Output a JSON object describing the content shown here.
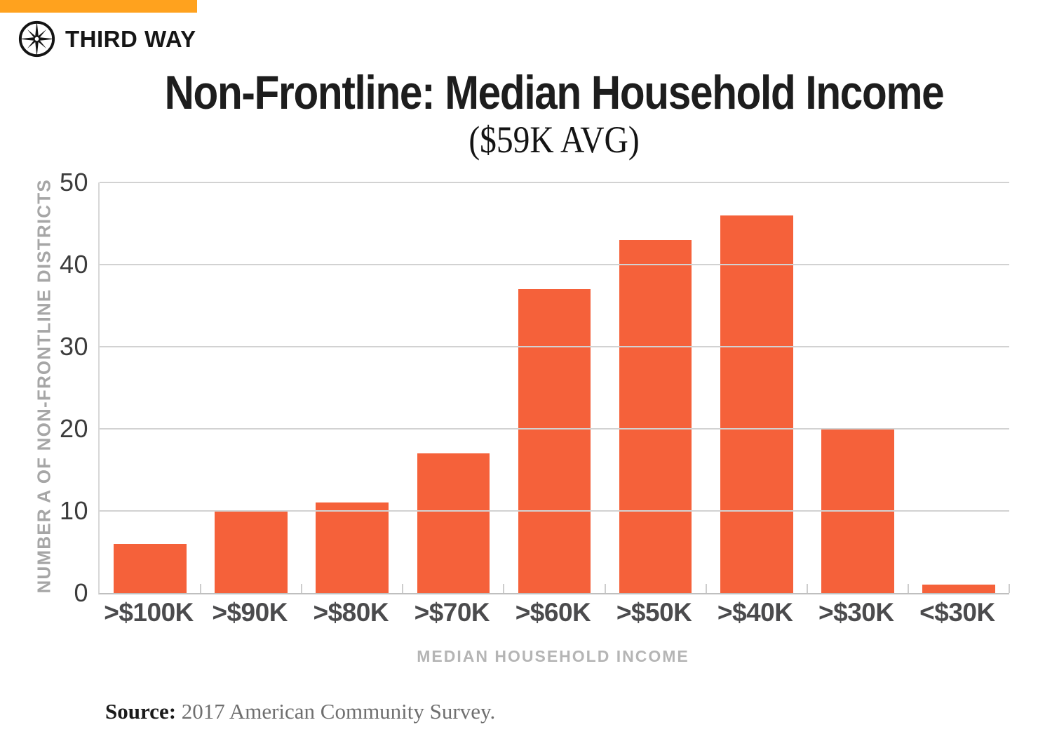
{
  "brand": {
    "name": "THIRD WAY",
    "banner_color": "#FFA21E",
    "logo_icon": "compass-icon"
  },
  "header": {
    "title": "Non-Frontline: Median Household Income",
    "subtitle": "($59K AVG)"
  },
  "source": {
    "label": "Source:",
    "text": " 2017 American Community Survey."
  },
  "chart_data": {
    "type": "bar",
    "title": "Non-Frontline: Median Household Income",
    "subtitle": "($59K AVG)",
    "categories": [
      ">$100K",
      ">$90K",
      ">$80K",
      ">$70K",
      ">$60K",
      ">$50K",
      ">$40K",
      ">$30K",
      "<$30K"
    ],
    "values": [
      6,
      10,
      11,
      17,
      37,
      43,
      46,
      20,
      1
    ],
    "xlabel": "MEDIAN HOUSEHOLD INCOME",
    "ylabel": "NUMBER A OF NON-FRONTLINE DISTRICTS",
    "ylim": [
      0,
      50
    ],
    "yticks": [
      0,
      10,
      20,
      30,
      40,
      50
    ],
    "grid": true,
    "legend": "none",
    "bar_color": "#F5613A",
    "gridline_color": "#d2d2d2"
  }
}
